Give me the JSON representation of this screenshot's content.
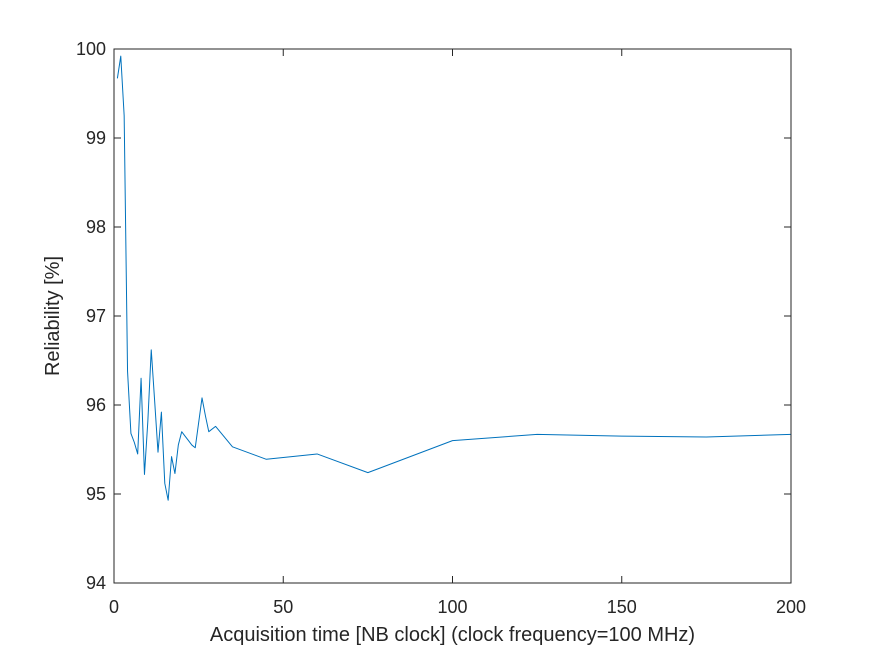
{
  "chart_data": {
    "type": "line",
    "title": "",
    "xlabel": "Acquisition time [NB clock] (clock frequency=100 MHz)",
    "ylabel": "Reliability [%]",
    "xlim": [
      0,
      200
    ],
    "ylim": [
      94,
      100
    ],
    "xticks": [
      0,
      50,
      100,
      150,
      200
    ],
    "xtick_labels": [
      "0",
      "50",
      "100",
      "150",
      "200"
    ],
    "yticks": [
      94,
      95,
      96,
      97,
      98,
      99,
      100
    ],
    "ytick_labels": [
      "94",
      "95",
      "96",
      "97",
      "98",
      "99",
      "100"
    ],
    "grid": false,
    "legend": "none",
    "series": [
      {
        "name": "Reliability",
        "color": "#0072BD",
        "x": [
          1,
          2,
          3,
          4,
          5,
          6,
          7,
          8,
          9,
          10,
          11,
          12,
          13,
          14,
          15,
          16,
          17,
          18,
          19,
          20,
          21,
          22,
          23,
          24,
          25,
          26,
          27,
          28,
          30,
          35,
          45,
          60,
          75,
          100,
          125,
          150,
          175,
          200
        ],
        "y": [
          99.67,
          99.92,
          99.25,
          96.38,
          95.68,
          95.58,
          95.45,
          96.3,
          95.22,
          95.82,
          96.62,
          96.05,
          95.47,
          95.92,
          95.12,
          94.93,
          95.42,
          95.23,
          95.55,
          95.7,
          95.65,
          95.6,
          95.55,
          95.52,
          95.8,
          96.08,
          95.88,
          95.7,
          95.76,
          95.53,
          95.39,
          95.45,
          95.24,
          95.6,
          95.67,
          95.65,
          95.64,
          95.67
        ]
      }
    ]
  }
}
